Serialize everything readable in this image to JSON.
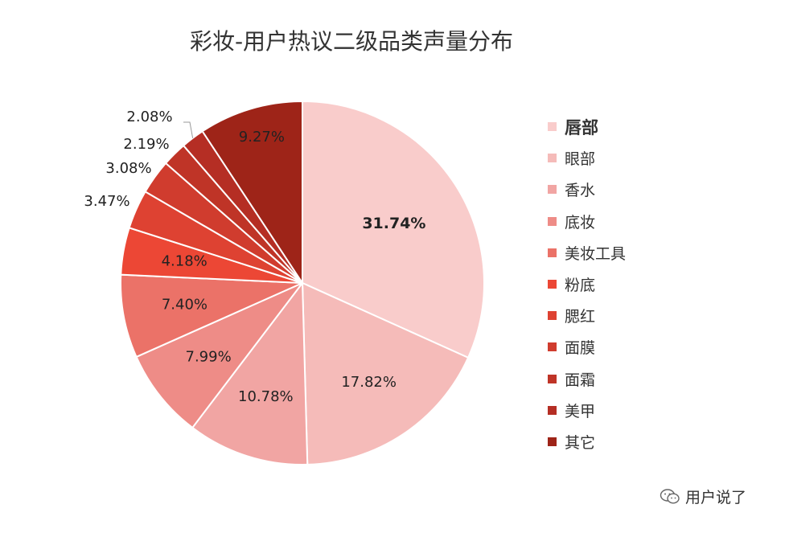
{
  "chart_data": {
    "type": "pie",
    "title": "彩妆-用户热议二级品类声量分布",
    "categories": [
      "唇部",
      "眼部",
      "香水",
      "底妆",
      "美妆工具",
      "粉底",
      "腮红",
      "面膜",
      "面霜",
      "美甲",
      "其它"
    ],
    "values": [
      31.74,
      17.82,
      10.78,
      7.99,
      7.4,
      4.18,
      3.47,
      3.08,
      2.19,
      2.08,
      9.27
    ],
    "labels": [
      "31.74%",
      "17.82%",
      "10.78%",
      "7.99%",
      "7.40%",
      "4.18%",
      "3.47%",
      "3.08%",
      "2.19%",
      "2.08%",
      "9.27%"
    ],
    "colors": [
      "#f9cccb",
      "#f5bbb9",
      "#f1a5a3",
      "#ee8c87",
      "#eb7268",
      "#ec4735",
      "#de4232",
      "#d03c2e",
      "#bf3427",
      "#b52e24",
      "#9e2418"
    ],
    "legend_position": "right",
    "emphasized": "唇部"
  },
  "watermark": {
    "text": "用户说了",
    "icon": "wechat-icon"
  }
}
